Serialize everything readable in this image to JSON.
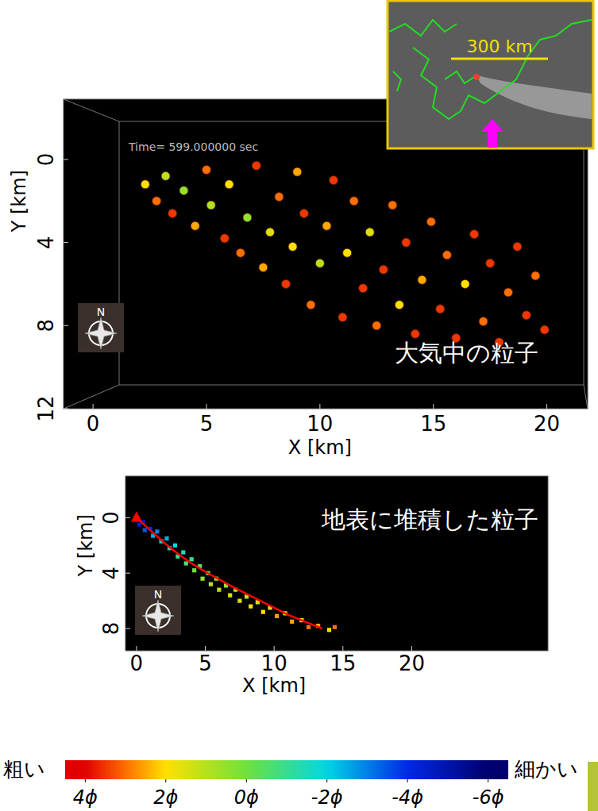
{
  "chart_data": [
    {
      "type": "scatter",
      "title": "大気中の粒子",
      "annotation": "Time= 599.000000 sec",
      "compass_label": "N",
      "x_label": "X [km]",
      "y_label": "Y [km]",
      "xlim": [
        -1.3,
        21.8
      ],
      "ylim": [
        12,
        -2.9
      ],
      "xticks": [
        0,
        5,
        10,
        15,
        20
      ],
      "yticks": [
        0,
        4,
        8,
        12
      ],
      "series": [
        {
          "type": "scatter",
          "marker": "circle",
          "x": [
            2.3,
            2.8,
            3.2,
            3.5,
            4.0,
            4.5,
            5.0,
            5.2,
            5.8,
            6.0,
            6.5,
            6.8,
            7.2,
            7.5,
            7.8,
            8.2,
            8.5,
            8.8,
            9.0,
            9.3,
            9.6,
            10.0,
            10.3,
            10.6,
            11.0,
            11.2,
            11.5,
            11.9,
            12.2,
            12.5,
            12.8,
            13.2,
            13.5,
            13.8,
            14.2,
            14.5,
            14.9,
            15.3,
            15.6,
            16.0,
            16.4,
            16.8,
            17.2,
            17.5,
            17.9,
            18.3,
            18.7,
            19.1,
            19.5,
            19.9
          ],
          "values": [
            1.2,
            2.0,
            0.8,
            2.6,
            1.5,
            3.2,
            0.5,
            2.2,
            3.8,
            1.2,
            4.5,
            2.8,
            0.3,
            5.2,
            3.5,
            1.8,
            6.0,
            4.2,
            0.6,
            2.6,
            7.0,
            5.0,
            3.2,
            1.0,
            7.6,
            4.5,
            2.0,
            6.2,
            3.5,
            8.0,
            5.3,
            2.2,
            7.0,
            4.0,
            8.4,
            5.8,
            3.0,
            7.2,
            4.6,
            8.6,
            6.0,
            3.6,
            7.8,
            5.0,
            8.8,
            6.4,
            4.2,
            7.5,
            5.6,
            8.2
          ],
          "phi": [
            2,
            3,
            1,
            3.5,
            0.5,
            2.5,
            3,
            1,
            3.5,
            2,
            3,
            0.5,
            3.5,
            2.5,
            1.5,
            3,
            3.5,
            2,
            2.5,
            3.5,
            3,
            1,
            2.5,
            3.5,
            3.5,
            2,
            3,
            3.5,
            1.5,
            3,
            3.5,
            3,
            2,
            3.5,
            3.5,
            2.5,
            3,
            3.5,
            3,
            3.5,
            2,
            3.5,
            3,
            3.5,
            3.5,
            3,
            3.5,
            3.5,
            3,
            3.5
          ]
        }
      ]
    },
    {
      "type": "scatter",
      "title": "地表に堆積した粒子",
      "compass_label": "N",
      "x_label": "X [km]",
      "y_label": "Y [km]",
      "xlim": [
        -0.8,
        29.9
      ],
      "ylim": [
        9.6,
        -3.0
      ],
      "xticks": [
        0,
        5,
        10,
        15,
        20
      ],
      "yticks": [
        0,
        4,
        8
      ],
      "series": [
        {
          "type": "scatter",
          "marker": "square",
          "x": [
            0.0,
            0.2,
            0.5,
            0.6,
            1.0,
            1.2,
            1.5,
            1.8,
            2.2,
            2.4,
            2.8,
            3.0,
            3.4,
            3.6,
            4.0,
            4.2,
            4.6,
            4.8,
            5.2,
            5.4,
            5.8,
            6.0,
            6.5,
            6.8,
            7.2,
            7.5,
            8.0,
            8.3,
            8.8,
            9.2,
            9.7,
            10.2,
            10.8,
            11.3,
            12.0,
            12.5,
            13.2,
            14.0,
            14.4
          ],
          "values": [
            0.2,
            0.5,
            0.3,
            0.9,
            0.8,
            1.3,
            1.0,
            1.7,
            1.5,
            2.2,
            2.0,
            2.8,
            2.5,
            3.3,
            3.0,
            3.8,
            3.5,
            4.4,
            4.0,
            4.8,
            4.4,
            5.2,
            4.9,
            5.6,
            5.2,
            6.0,
            5.7,
            6.4,
            6.1,
            6.8,
            6.5,
            7.1,
            6.9,
            7.5,
            7.4,
            7.9,
            7.8,
            8.1,
            7.9
          ],
          "phi": [
            -5.5,
            -4.5,
            -5,
            -3.5,
            -4,
            -2.5,
            -3,
            -2,
            -2.5,
            -1.5,
            -2,
            -1,
            -1.5,
            -0.5,
            -1,
            0,
            -0.5,
            0.5,
            0,
            1,
            0.5,
            1,
            0.5,
            1.5,
            1,
            1.5,
            1,
            2,
            1.5,
            2,
            1.5,
            2.5,
            2,
            2.5,
            2,
            3,
            2.5,
            2,
            3
          ]
        },
        {
          "type": "line",
          "color": "#ff0000",
          "line_style": "solid",
          "x": [
            0,
            1,
            2,
            3,
            4,
            5,
            7,
            9,
            11,
            13.5
          ],
          "values": [
            0,
            0.9,
            1.8,
            2.6,
            3.3,
            3.9,
            5.0,
            6.0,
            7.0,
            8.0
          ]
        },
        {
          "type": "scatter",
          "marker": "triangle",
          "color": "#ff0000",
          "x": [
            0
          ],
          "values": [
            0
          ]
        }
      ]
    }
  ],
  "colorbar": {
    "range": [
      4.5,
      -6.5
    ],
    "ticks": [
      {
        "value": 4,
        "label": "4ϕ"
      },
      {
        "value": 2,
        "label": "2ϕ"
      },
      {
        "value": 0,
        "label": "0ϕ"
      },
      {
        "value": -2,
        "label": "-2ϕ"
      },
      {
        "value": -4,
        "label": "-4ϕ"
      },
      {
        "value": -6,
        "label": "-6ϕ"
      }
    ],
    "low_label": "粗い",
    "high_label": "細かい"
  },
  "inset": {
    "scale_label": "300 km"
  }
}
